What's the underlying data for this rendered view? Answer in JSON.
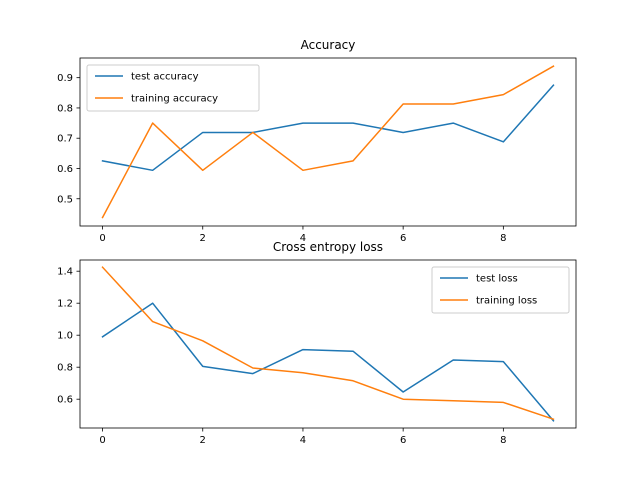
{
  "colors": {
    "blue": "#1f77b4",
    "orange": "#ff7f0e"
  },
  "chart_data": [
    {
      "type": "line",
      "title": "Accuracy",
      "xlabel": "",
      "ylabel": "",
      "x": [
        0,
        1,
        2,
        3,
        4,
        5,
        6,
        7,
        8,
        9
      ],
      "xlim": [
        -0.45,
        9.45
      ],
      "ylim": [
        0.41,
        0.965
      ],
      "xticks": [
        0,
        2,
        4,
        6,
        8
      ],
      "xtick_labels": [
        "0",
        "2",
        "4",
        "6",
        "8"
      ],
      "yticks": [
        0.5,
        0.6,
        0.7,
        0.8,
        0.9
      ],
      "ytick_labels": [
        "0.5",
        "0.6",
        "0.7",
        "0.8",
        "0.9"
      ],
      "legend": "top-left",
      "grid": false,
      "series": [
        {
          "name": "test accuracy",
          "color": "#1f77b4",
          "values": [
            0.625,
            0.594,
            0.719,
            0.719,
            0.75,
            0.75,
            0.719,
            0.75,
            0.688,
            0.875
          ]
        },
        {
          "name": "training accuracy",
          "color": "#ff7f0e",
          "values": [
            0.438,
            0.75,
            0.594,
            0.719,
            0.594,
            0.625,
            0.813,
            0.813,
            0.844,
            0.938
          ]
        }
      ]
    },
    {
      "type": "line",
      "title": "Cross entropy loss",
      "xlabel": "",
      "ylabel": "",
      "x": [
        0,
        1,
        2,
        3,
        4,
        5,
        6,
        7,
        8,
        9
      ],
      "xlim": [
        -0.45,
        9.45
      ],
      "ylim": [
        0.42,
        1.47
      ],
      "xticks": [
        0,
        2,
        4,
        6,
        8
      ],
      "xtick_labels": [
        "0",
        "2",
        "4",
        "6",
        "8"
      ],
      "yticks": [
        0.6,
        0.8,
        1.0,
        1.2,
        1.4
      ],
      "ytick_labels": [
        "0.6",
        "0.8",
        "1.0",
        "1.2",
        "1.4"
      ],
      "legend": "top-right",
      "grid": false,
      "series": [
        {
          "name": "test loss",
          "color": "#1f77b4",
          "values": [
            0.99,
            1.2,
            0.805,
            0.76,
            0.91,
            0.9,
            0.645,
            0.845,
            0.835,
            0.465
          ]
        },
        {
          "name": "training loss",
          "color": "#ff7f0e",
          "values": [
            1.425,
            1.085,
            0.965,
            0.795,
            0.765,
            0.715,
            0.6,
            0.59,
            0.58,
            0.475
          ]
        }
      ]
    }
  ]
}
